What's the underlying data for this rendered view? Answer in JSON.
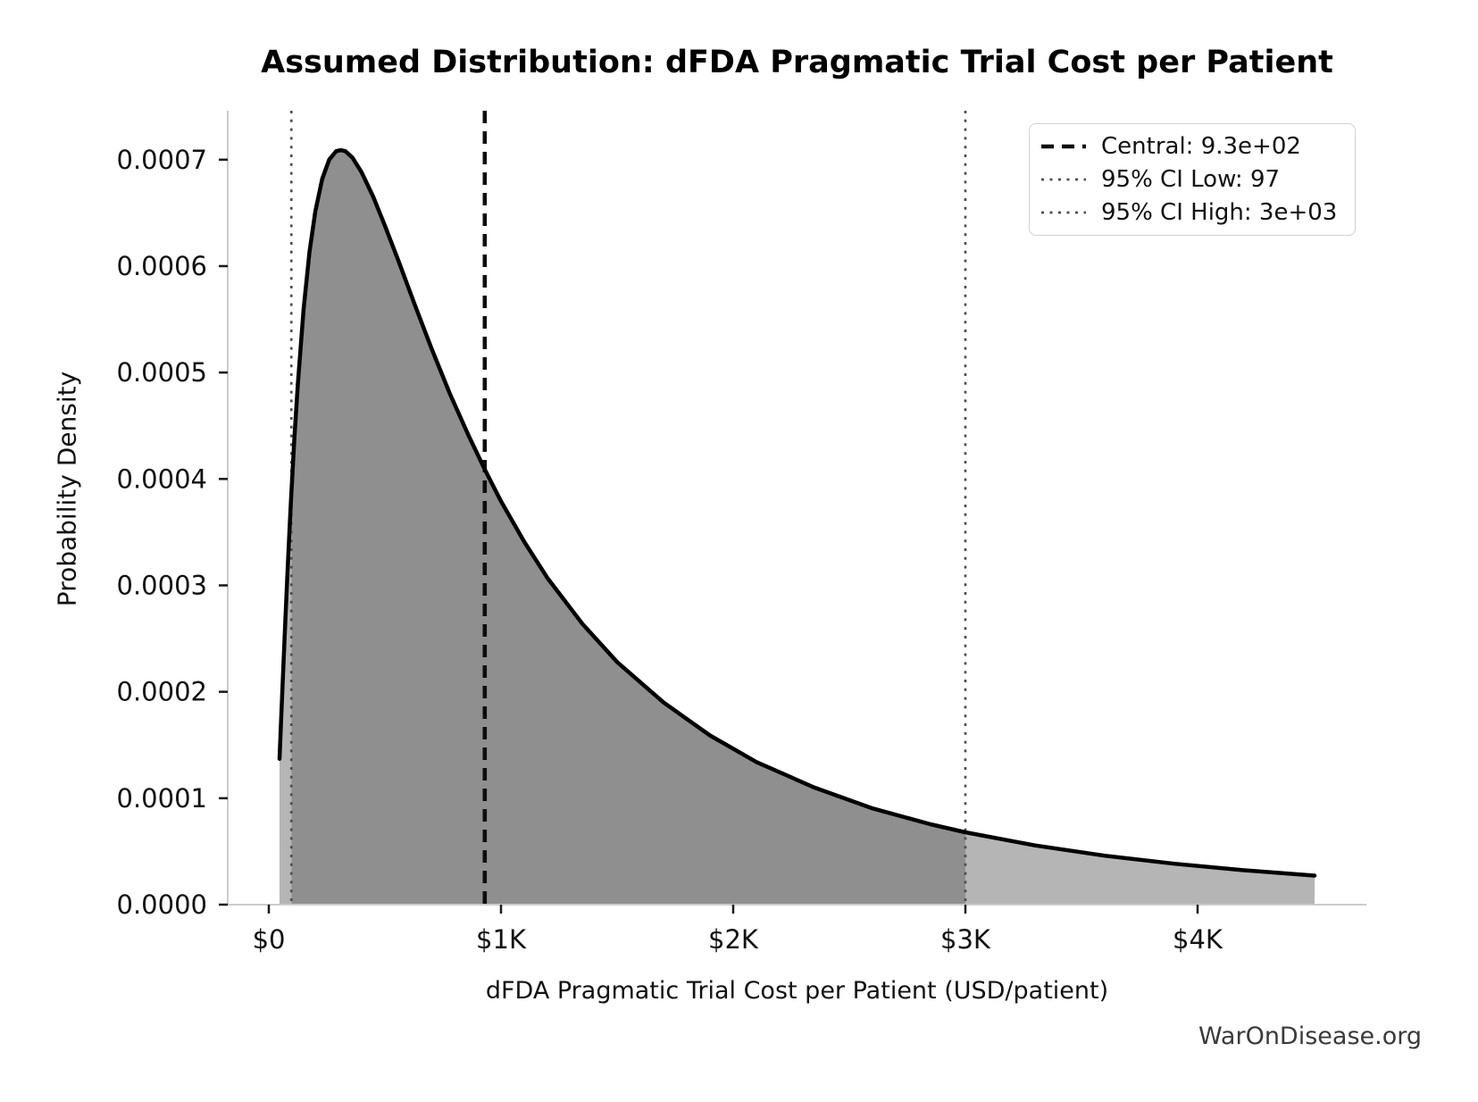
{
  "title": "Assumed Distribution: dFDA Pragmatic Trial Cost per Patient",
  "watermark": "WarOnDisease.org",
  "chart_data": {
    "type": "area",
    "title": "Assumed Distribution: dFDA Pragmatic Trial Cost per Patient",
    "xlabel": "dFDA Pragmatic Trial Cost per Patient (USD/patient)",
    "ylabel": "Probability Density",
    "xlim": [
      -177,
      4727
    ],
    "ylim": [
      0,
      0.000746
    ],
    "grid": false,
    "legend_position": "upper right",
    "x_tick_values": [
      0,
      1000,
      2000,
      3000,
      4000
    ],
    "x_tick_labels": [
      "$0",
      "$1K",
      "$2K",
      "$3K",
      "$4K"
    ],
    "y_tick_values": [
      0,
      0.0001,
      0.0002,
      0.0003,
      0.0004,
      0.0005,
      0.0006,
      0.0007
    ],
    "y_tick_labels": [
      "0.0000",
      "0.0001",
      "0.0002",
      "0.0003",
      "0.0004",
      "0.0005",
      "0.0006",
      "0.0007"
    ],
    "distribution": {
      "family": "lognormal",
      "median": 930,
      "sigma_log": 1.05,
      "x_min": 46,
      "x_max": 4504
    },
    "central": {
      "value": 930,
      "label": "Central: 9.3e+02",
      "line_style": "dashed",
      "color": "#0d0d0d"
    },
    "ci_low": {
      "value": 97,
      "label": "95% CI Low: 97",
      "line_style": "dotted",
      "color": "#4f4f4f"
    },
    "ci_high": {
      "value": 3000,
      "label": "95% CI High: 3e+03",
      "line_style": "dotted",
      "color": "#4f4f4f"
    },
    "curve_color": "#000000",
    "fill_color_central": "#8f8f8f",
    "fill_color_tails": "#b5b5b5",
    "spine_color": "#cccccc",
    "tick_color": "#1a1a1a",
    "fill_regions": [
      {
        "from": 46,
        "to": 97,
        "zone": "tail"
      },
      {
        "from": 97,
        "to": 3000,
        "zone": "central"
      },
      {
        "from": 3000,
        "to": 4504,
        "zone": "tail"
      }
    ],
    "curve_points": [
      [
        46,
        0.000137
      ],
      [
        52,
        0.000168
      ],
      [
        60,
        0.00021
      ],
      [
        70,
        0.000261
      ],
      [
        80,
        0.00031
      ],
      [
        90,
        0.000356
      ],
      [
        97,
        0.000386
      ],
      [
        100,
        0.000398
      ],
      [
        110,
        0.000438
      ],
      [
        125,
        0.000489
      ],
      [
        150,
        0.00056
      ],
      [
        175,
        0.000613
      ],
      [
        200,
        0.000651
      ],
      [
        230,
        0.000682
      ],
      [
        260,
        0.0007
      ],
      [
        290,
        0.000708
      ],
      [
        310,
        0.000709
      ],
      [
        330,
        0.000708
      ],
      [
        360,
        0.000702
      ],
      [
        400,
        0.000688
      ],
      [
        450,
        0.000665
      ],
      [
        500,
        0.000638
      ],
      [
        560,
        0.000604
      ],
      [
        630,
        0.000563
      ],
      [
        700,
        0.000523
      ],
      [
        780,
        0.00048
      ],
      [
        860,
        0.000441
      ],
      [
        930,
        0.000409
      ],
      [
        1000,
        0.000379
      ],
      [
        1100,
        0.000341
      ],
      [
        1200,
        0.000307
      ],
      [
        1350,
        0.000264
      ],
      [
        1500,
        0.000228
      ],
      [
        1700,
        0.00019
      ],
      [
        1900,
        0.000159
      ],
      [
        2100,
        0.000134
      ],
      [
        2350,
        0.00011
      ],
      [
        2600,
        9.05e-05
      ],
      [
        2850,
        7.55e-05
      ],
      [
        3000,
        6.8e-05
      ],
      [
        3300,
        5.56e-05
      ],
      [
        3600,
        4.6e-05
      ],
      [
        3900,
        3.84e-05
      ],
      [
        4200,
        3.23e-05
      ],
      [
        4504,
        2.73e-05
      ]
    ]
  }
}
